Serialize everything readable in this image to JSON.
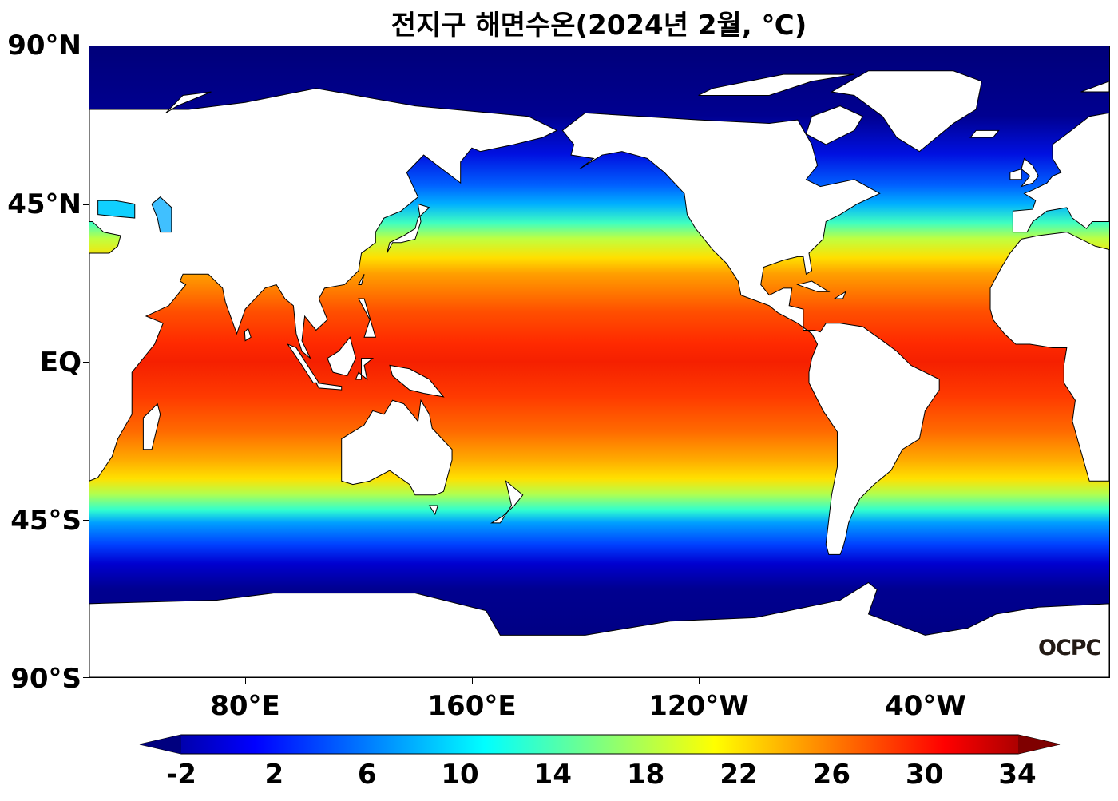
{
  "title": "전지구 해면수온(2024년 2월, ℃)",
  "map": {
    "variable": "sea surface temperature",
    "unit": "℃",
    "colormap": "jet",
    "lat_labels": [
      "90°N",
      "45°N",
      "EQ",
      "45°S",
      "90°S"
    ],
    "lon_labels": [
      "80°E",
      "160°E",
      "120°W",
      "40°W"
    ],
    "land_color": "#ffffff",
    "coastline_color": "#000000"
  },
  "colorbar": {
    "ticks": [
      "-2",
      "2",
      "6",
      "10",
      "14",
      "18",
      "22",
      "26",
      "30",
      "34"
    ],
    "min": -2,
    "max": 34,
    "extend": "both",
    "colors": [
      "#00007f",
      "#0000ff",
      "#007fff",
      "#00ffff",
      "#7fff7f",
      "#ffff00",
      "#ff7f00",
      "#ff0000",
      "#7f0000"
    ]
  },
  "logo": "OCPC"
}
